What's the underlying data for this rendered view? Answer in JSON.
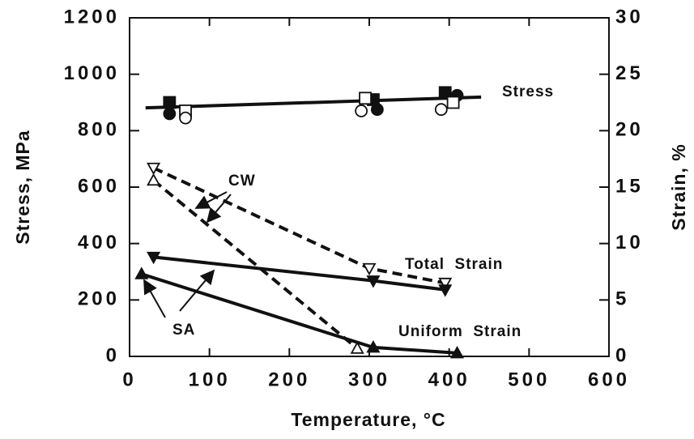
{
  "chart_data": {
    "type": "line",
    "x_label": "Temperature,  °C",
    "y_label": "Stress,  MPa",
    "y2_label": "Strain,  %",
    "xlim": [
      0,
      600
    ],
    "xticks": [
      0,
      100,
      200,
      300,
      400,
      500,
      600
    ],
    "ylim": [
      0,
      1200
    ],
    "yticks": [
      0,
      200,
      400,
      600,
      800,
      1000,
      1200
    ],
    "y2lim": [
      0,
      30
    ],
    "y2ticks": [
      0,
      5,
      10,
      15,
      20,
      25,
      30
    ],
    "color": "#111111",
    "series": [
      {
        "axis": "y",
        "line": "solid",
        "x": [
          20,
          440
        ],
        "values": [
          881,
          919
        ]
      },
      {
        "axis": "y",
        "marker": "square",
        "filled": true,
        "x": [
          50,
          305,
          395
        ],
        "values": [
          900,
          910,
          935
        ]
      },
      {
        "axis": "y",
        "marker": "circle",
        "filled": true,
        "x": [
          50,
          310,
          410
        ],
        "values": [
          860,
          875,
          925
        ]
      },
      {
        "axis": "y",
        "marker": "square",
        "filled": false,
        "x": [
          70,
          295,
          405
        ],
        "values": [
          870,
          915,
          900
        ]
      },
      {
        "axis": "y",
        "marker": "circle",
        "filled": false,
        "x": [
          70,
          290,
          390
        ],
        "values": [
          845,
          870,
          875
        ]
      },
      {
        "axis": "y2",
        "line": "dashed",
        "marker": "triangle-down",
        "filled": false,
        "x": [
          30,
          300,
          395
        ],
        "values": [
          16.7,
          7.8,
          6.5
        ]
      },
      {
        "axis": "y2",
        "line": "solid",
        "marker": "triangle-down",
        "filled": true,
        "x": [
          30,
          305,
          395
        ],
        "values": [
          8.8,
          6.7,
          5.9
        ]
      },
      {
        "axis": "y2",
        "line": "dashed",
        "marker": "triangle-up",
        "filled": false,
        "x": [
          30,
          285
        ],
        "values": [
          15.6,
          0.7
        ]
      },
      {
        "axis": "y2",
        "line": "solid",
        "marker": "triangle-up",
        "filled": true,
        "x": [
          15,
          305,
          410
        ],
        "values": [
          7.3,
          0.8,
          0.3
        ]
      }
    ],
    "annotations": [
      "Stress",
      "Total  Strain",
      "Uniform  Strain",
      "CW",
      "SA"
    ]
  }
}
